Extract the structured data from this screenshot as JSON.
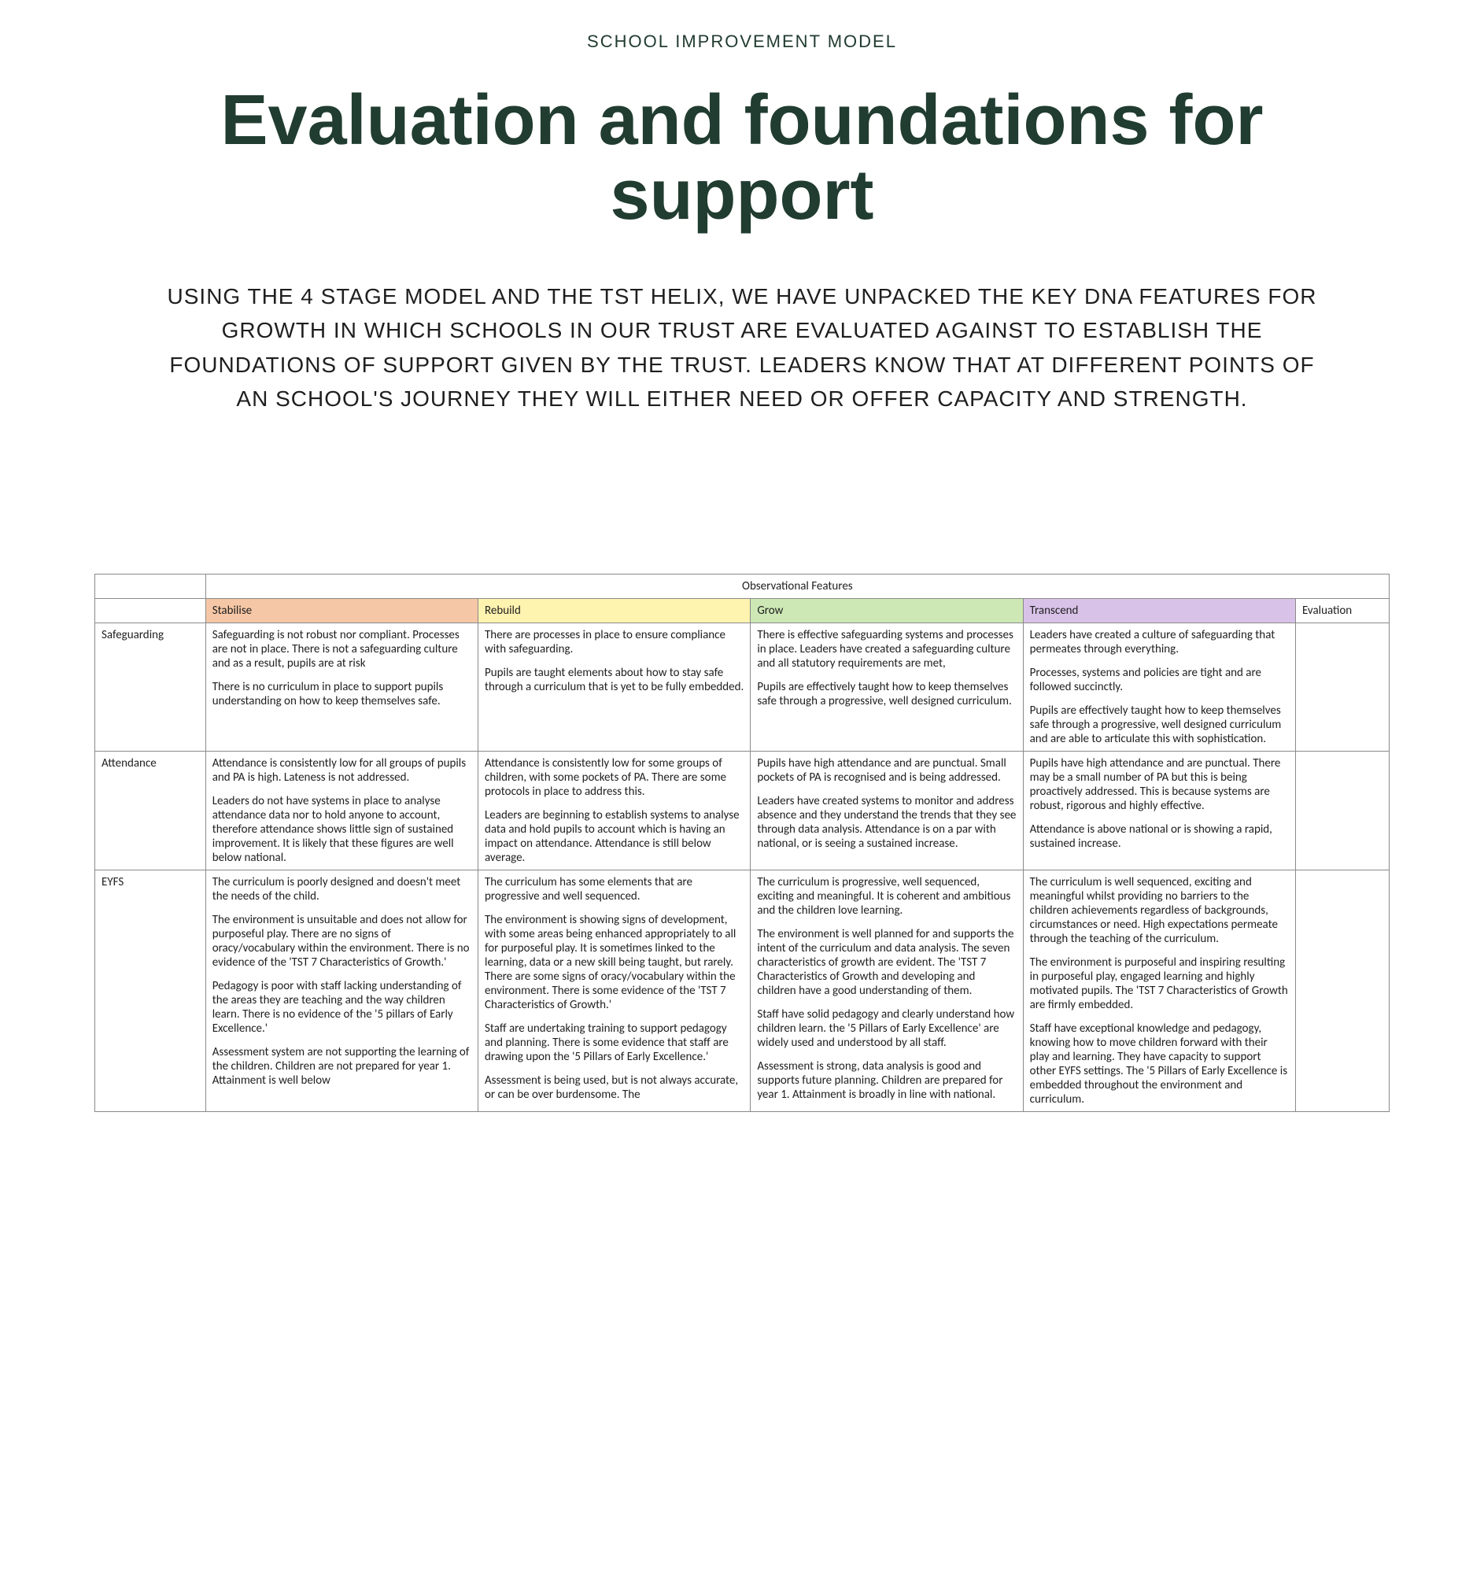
{
  "eyebrow": "SCHOOL IMPROVEMENT MODEL",
  "headline": "Evaluation and foundations for support",
  "intro": "USING THE 4 STAGE MODEL AND THE TST HELIX, WE HAVE UNPACKED THE KEY DNA FEATURES FOR GROWTH IN WHICH SCHOOLS IN OUR TRUST ARE EVALUATED AGAINST TO ESTABLISH THE FOUNDATIONS OF SUPPORT GIVEN BY THE TRUST.  LEADERS KNOW THAT AT DIFFERENT POINTS OF AN SCHOOL'S JOURNEY THEY WILL EITHER NEED OR OFFER CAPACITY AND STRENGTH.",
  "colors": {
    "brand_text": "#213c30",
    "body_text": "#1f1f1f",
    "border": "#8a8a8a",
    "stabilise_bg": "#f6c7a6",
    "rebuild_bg": "#fff3b0",
    "grow_bg": "#cde8b5",
    "transcend_bg": "#d9c2e8"
  },
  "table": {
    "header_spanner": "Observational Features",
    "stages": [
      "Stabilise",
      "Rebuild",
      "Grow",
      "Transcend"
    ],
    "evaluation_label": "Evaluation",
    "rows": [
      {
        "label": "Safeguarding",
        "cells": [
          [
            "Safeguarding is not robust nor compliant.  Processes are not in place.  There is not a safeguarding culture and as a result, pupils are at risk",
            "There is no curriculum in place to support pupils understanding on how to keep themselves safe."
          ],
          [
            "There are processes in place to ensure compliance with safeguarding.",
            "Pupils are taught elements about how to stay safe through a curriculum that is yet to be fully embedded."
          ],
          [
            "There is effective safeguarding systems and processes in place.  Leaders have created a safeguarding culture and all statutory requirements are met,",
            "Pupils are effectively taught how to keep themselves safe through a progressive, well designed curriculum."
          ],
          [
            "Leaders have created a culture of safeguarding that permeates through everything.",
            "Processes, systems and policies are tight and are followed succinctly.",
            "Pupils are effectively taught how to keep themselves safe through a progressive, well designed curriculum and are able to articulate this with sophistication."
          ]
        ]
      },
      {
        "label": "Attendance",
        "cells": [
          [
            "Attendance is consistently low for all groups of pupils and PA is high.  Lateness is not addressed.",
            "Leaders do not have systems in place to analyse attendance data nor to hold anyone to account, therefore attendance shows little sign of sustained improvement.  It is likely that these figures are well below national."
          ],
          [
            "Attendance is consistently low for some groups of children, with some pockets of PA. There are some protocols in place to address this.",
            "Leaders are beginning to establish systems to analyse data and hold pupils to account which is having an impact on attendance.  Attendance is still below average."
          ],
          [
            "Pupils have high attendance and are punctual. Small pockets of PA is recognised and is being addressed.",
            "Leaders have created systems to monitor and address absence and they understand the trends that they see through data analysis.  Attendance is on a par with national, or is seeing a sustained increase."
          ],
          [
            "Pupils have high attendance and are punctual.  There may be a small number of PA but this is being proactively addressed.  This is because systems are robust, rigorous and highly effective.",
            "Attendance is above national or is showing a rapid, sustained increase."
          ]
        ]
      },
      {
        "label": "EYFS",
        "cells": [
          [
            "The curriculum is poorly designed and doesn't meet the needs of the child.",
            "The environment is unsuitable and does not allow for purposeful play.  There are no signs of oracy/vocabulary within the environment.  There is no evidence of the 'TST 7 Characteristics of Growth.'",
            "Pedagogy is poor with staff lacking understanding of the areas they are teaching and the way children learn.  There is no evidence of the '5 pillars of Early Excellence.'",
            "Assessment system are not supporting the learning of the children.  Children are not prepared for year 1.  Attainment is well below"
          ],
          [
            "The curriculum has some elements that are progressive and well sequenced.",
            "The environment is showing signs of development, with some areas being enhanced appropriately to all for purposeful play.  It is sometimes linked to the learning, data or a new skill being taught, but rarely.  There are some signs of oracy/vocabulary within the environment.  There is some evidence of the 'TST 7 Characteristics of Growth.'",
            "Staff are undertaking training to support pedagogy and planning.  There is some evidence that staff are drawing upon the '5 Pillars of Early Excellence.'",
            "Assessment is being used, but is not always accurate, or can be over burdensome.  The"
          ],
          [
            "The curriculum is progressive, well sequenced, exciting and meaningful.  It is coherent and ambitious and the children love learning.",
            "The environment is well planned for and supports the intent of the curriculum and data analysis.  The seven characteristics of growth are evident.  The 'TST 7 Characteristics of Growth and developing and children have a good understanding of them.",
            "Staff have solid pedagogy and clearly understand how children learn.  the '5 Pillars of Early Excellence' are widely used and understood by all staff.",
            "Assessment is strong, data analysis is good and supports future planning.  Children are prepared for year 1.  Attainment is broadly in line with national."
          ],
          [
            "The curriculum is well sequenced, exciting and meaningful whilst providing no barriers to the children achievements regardless of backgrounds, circumstances or need.  High expectations permeate through the teaching of the curriculum.",
            "The environment is purposeful and inspiring resulting in purposeful play, engaged learning and highly motivated pupils.  The 'TST 7 Characteristics of Growth are firmly embedded.",
            "Staff have exceptional knowledge and pedagogy, knowing how to move children forward with their play and learning.   They have capacity to support other EYFS settings.  The '5 Pillars of Early Excellence is embedded throughout the environment and curriculum."
          ]
        ]
      }
    ]
  }
}
